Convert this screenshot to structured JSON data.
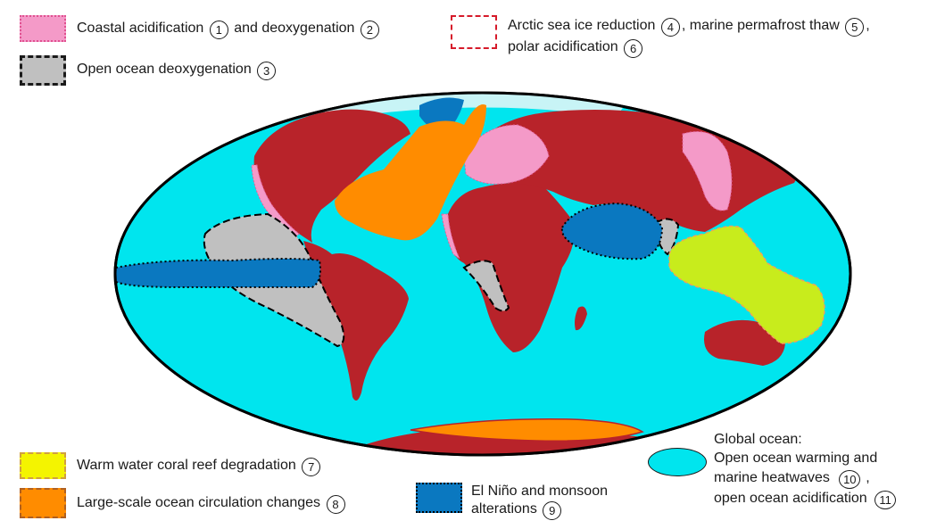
{
  "legend": {
    "coastal": {
      "text1": "Coastal acidification",
      "n1": "1",
      "text2": "and deoxygenation",
      "n2": "2"
    },
    "open_deox": {
      "text": "Open ocean deoxygenation",
      "n": "3"
    },
    "arctic": {
      "line1_text1": "Arctic sea ice reduction",
      "n1": "4",
      "line1_text2": ", marine permafrost thaw",
      "n2": "5",
      "line1_text3": ",",
      "line2_text": "polar acidification",
      "n3": "6"
    },
    "coral": {
      "text": "Warm water coral reef degradation",
      "n": "7"
    },
    "circulation": {
      "text": "Large-scale ocean circulation changes",
      "n": "8"
    },
    "enso": {
      "line1": "El Niño and monsoon",
      "line2": "alterations",
      "n": "9"
    },
    "global": {
      "title": "Global ocean:",
      "line1": "Open ocean warming and",
      "line2": "marine heatwaves",
      "n1": "10",
      "line2_tail": ",",
      "line3": "open ocean acidification",
      "n2": "11"
    }
  },
  "colors": {
    "ocean": "#00E5EE",
    "land": "#B8232A",
    "coastal_pink": "#F49AC8",
    "deox_gray": "#C0C0C0",
    "coral_yellow": "#D4F000",
    "circulation_orange": "#FF8C00",
    "enso_blue": "#0A78C0",
    "antarctic_orange": "#FF8C00"
  }
}
